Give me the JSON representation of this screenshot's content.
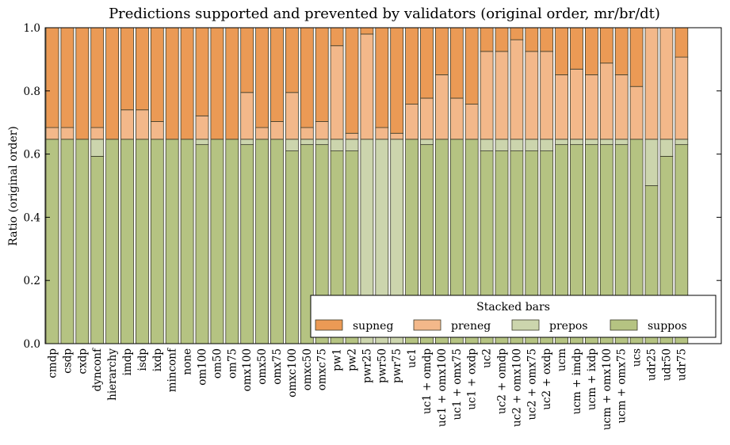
{
  "chart_data": {
    "type": "bar",
    "stacked": true,
    "title": "Predictions supported and prevented by validators (original order, mr/br/dt)",
    "ylabel": "Ratio (original order)",
    "xlabel": "",
    "ylim": [
      0,
      1.0
    ],
    "yticks": [
      "0.0",
      "0.2",
      "0.4",
      "0.6",
      "0.8",
      "1.0"
    ],
    "categories": [
      "cmdp",
      "csdp",
      "cxdp",
      "dynconf",
      "hierarchy",
      "imdp",
      "isdp",
      "ixdp",
      "minconf",
      "none",
      "om100",
      "om50",
      "om75",
      "omx100",
      "omx50",
      "omx75",
      "omxc100",
      "omxc50",
      "omxc75",
      "pw1",
      "pw2",
      "pwr25",
      "pwr50",
      "pwr75",
      "uc1",
      "uc1 + omdp",
      "uc1 + omx100",
      "uc1 + omx75",
      "uc1 + oxdp",
      "uc2",
      "uc2 + omdp",
      "uc2 + omx100",
      "uc2 + omx75",
      "uc2 + oxdp",
      "ucm",
      "ucm + imdp",
      "ucm + ixdp",
      "ucm + omx100",
      "ucm + omx75",
      "ucs",
      "udr25",
      "udr50",
      "udr75"
    ],
    "series": [
      {
        "name": "suppos",
        "color": "#b5c382",
        "values": [
          0.647,
          0.647,
          0.647,
          0.593,
          0.647,
          0.647,
          0.647,
          0.647,
          0.647,
          0.647,
          0.63,
          0.647,
          0.647,
          0.63,
          0.647,
          0.647,
          0.61,
          0.63,
          0.63,
          0.61,
          0.61,
          0.0,
          0.0,
          0.0,
          0.647,
          0.63,
          0.647,
          0.647,
          0.647,
          0.61,
          0.61,
          0.61,
          0.61,
          0.61,
          0.63,
          0.63,
          0.63,
          0.63,
          0.63,
          0.647,
          0.5,
          0.593,
          0.63
        ]
      },
      {
        "name": "prepos",
        "color": "#ccd5ad",
        "values": [
          0.0,
          0.0,
          0.0,
          0.054,
          0.0,
          0.0,
          0.0,
          0.0,
          0.0,
          0.0,
          0.017,
          0.0,
          0.0,
          0.017,
          0.0,
          0.0,
          0.037,
          0.017,
          0.017,
          0.037,
          0.037,
          0.647,
          0.647,
          0.647,
          0.0,
          0.017,
          0.0,
          0.0,
          0.0,
          0.037,
          0.037,
          0.037,
          0.037,
          0.037,
          0.017,
          0.017,
          0.017,
          0.017,
          0.017,
          0.0,
          0.147,
          0.054,
          0.017
        ]
      },
      {
        "name": "preneg",
        "color": "#f3b88a",
        "values": [
          0.037,
          0.037,
          0.0,
          0.037,
          0.0,
          0.093,
          0.093,
          0.056,
          0.0,
          0.0,
          0.074,
          0.0,
          0.0,
          0.148,
          0.037,
          0.056,
          0.148,
          0.037,
          0.056,
          0.296,
          0.019,
          0.333,
          0.037,
          0.019,
          0.111,
          0.13,
          0.204,
          0.13,
          0.111,
          0.278,
          0.278,
          0.315,
          0.278,
          0.278,
          0.204,
          0.222,
          0.204,
          0.241,
          0.204,
          0.167,
          0.353,
          0.353,
          0.26
        ]
      },
      {
        "name": "supneg",
        "color": "#eb9a55",
        "values": [
          0.316,
          0.316,
          0.353,
          0.316,
          0.353,
          0.26,
          0.26,
          0.297,
          0.353,
          0.353,
          0.279,
          0.353,
          0.353,
          0.205,
          0.316,
          0.297,
          0.205,
          0.316,
          0.297,
          0.057,
          0.334,
          0.02,
          0.316,
          0.334,
          0.242,
          0.223,
          0.149,
          0.223,
          0.242,
          0.075,
          0.075,
          0.038,
          0.075,
          0.075,
          0.149,
          0.131,
          0.149,
          0.112,
          0.149,
          0.186,
          0.0,
          0.0,
          0.093
        ]
      }
    ],
    "legend": {
      "title": "Stacked bars",
      "placement": "lower-right",
      "order": [
        "supneg",
        "preneg",
        "prepos",
        "suppos"
      ]
    }
  }
}
